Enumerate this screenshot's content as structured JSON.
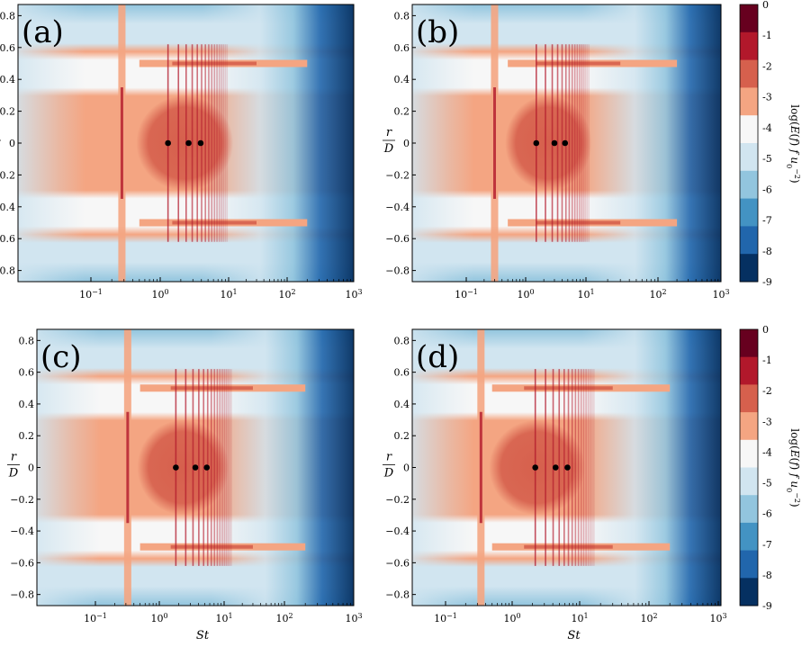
{
  "chart_data": {
    "type": "heatmap",
    "panels": [
      {
        "label": "(a)",
        "dots_x": [
          1.3,
          2.6,
          3.9
        ],
        "dots_y": [
          0,
          0,
          0
        ]
      },
      {
        "label": "(b)",
        "dots_x": [
          1.5,
          3.0,
          4.5
        ],
        "dots_y": [
          0,
          0,
          0
        ]
      },
      {
        "label": "(c)",
        "dots_x": [
          1.8,
          3.6,
          5.4
        ],
        "dots_y": [
          0,
          0,
          0
        ]
      },
      {
        "label": "(d)",
        "dots_x": [
          2.2,
          4.4,
          6.6
        ],
        "dots_y": [
          0,
          0,
          0
        ]
      }
    ],
    "xlabel": "St",
    "ylabel_num": "r",
    "ylabel_den": "D",
    "xscale": "log",
    "xlim": [
      0.02,
      1000
    ],
    "ylim": [
      -0.87,
      0.87
    ],
    "yticks": [
      "0.8",
      "0.6",
      "0.4",
      "0.2",
      "0",
      "-0.2",
      "-0.4",
      "-0.6",
      "-0.8"
    ],
    "xticks": [
      {
        "base": "10",
        "exp": "−1"
      },
      {
        "base": "10",
        "exp": "0"
      },
      {
        "base": "10",
        "exp": "1"
      },
      {
        "base": "10",
        "exp": "2"
      },
      {
        "base": "10",
        "exp": "3"
      }
    ],
    "colorbar": {
      "ticks": [
        "0",
        "-1",
        "-2",
        "-3",
        "-4",
        "-5",
        "-6",
        "-7",
        "-8",
        "-9"
      ],
      "label": "log(E(f) f u0^-2)",
      "range": [
        -9,
        0
      ],
      "colors": [
        "#67001f",
        "#b2182b",
        "#d6604d",
        "#f4a582",
        "#f7f7f7",
        "#d1e5f0",
        "#92c5de",
        "#4393c3",
        "#2166ac",
        "#053061"
      ]
    }
  }
}
